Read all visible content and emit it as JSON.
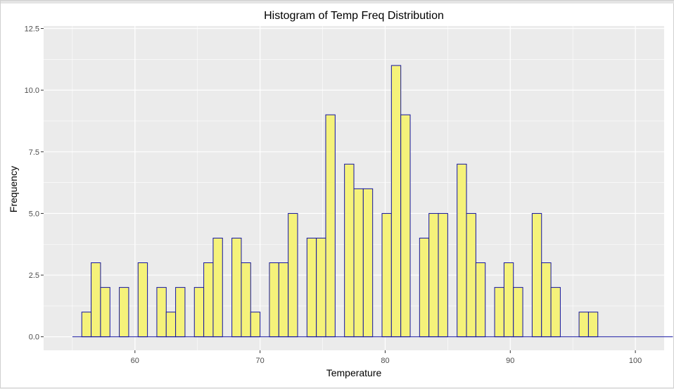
{
  "chart_data": {
    "type": "histogram",
    "title": "Histogram of Temp Freq Distribution",
    "xlabel": "Temperature",
    "ylabel": "Frequency",
    "xlim": [
      52.7,
      102.3
    ],
    "ylim": [
      -0.55,
      12.6
    ],
    "x_ticks": [
      60,
      70,
      80,
      90,
      100
    ],
    "x_tick_labels": [
      "60",
      "70",
      "80",
      "90",
      "100"
    ],
    "y_ticks": [
      0,
      2.5,
      5,
      7.5,
      10,
      12.5
    ],
    "y_tick_labels": [
      "0.0",
      "2.5",
      "5.0",
      "7.5",
      "10.0",
      "12.5"
    ],
    "bin_start": 55,
    "bin_width": 0.75,
    "values": [
      0,
      1,
      3,
      2,
      0,
      2,
      0,
      3,
      0,
      2,
      1,
      2,
      0,
      2,
      3,
      4,
      0,
      4,
      3,
      1,
      0,
      3,
      3,
      5,
      0,
      4,
      4,
      9,
      0,
      7,
      6,
      6,
      0,
      5,
      11,
      9,
      0,
      4,
      5,
      5,
      0,
      7,
      5,
      3,
      0,
      2,
      3,
      2,
      0,
      5,
      3,
      2,
      0,
      0,
      1,
      1,
      0,
      0,
      0,
      0,
      0,
      0,
      0,
      0
    ],
    "fill_color": "#f5f27a",
    "outline_color": "#1414a0",
    "panel_background": "#ebebeb",
    "grid_color": "#ffffff",
    "grid": true
  }
}
